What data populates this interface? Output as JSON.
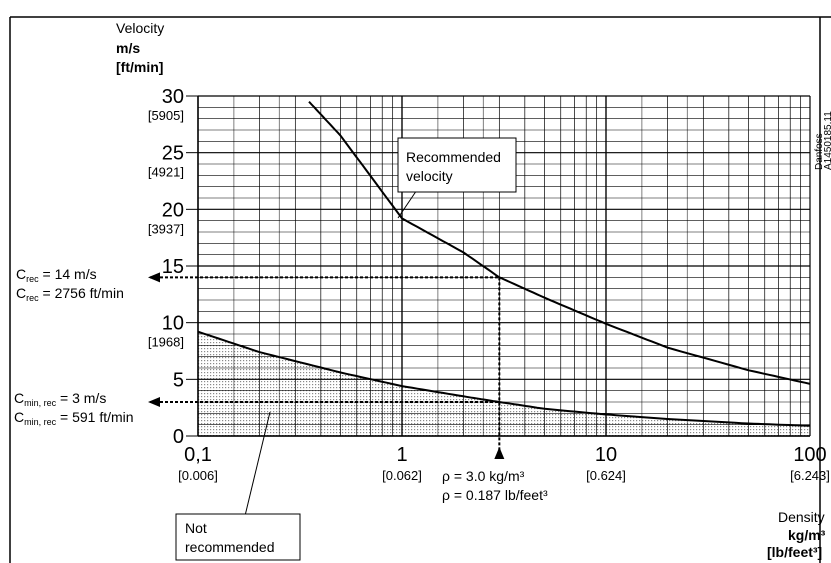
{
  "chart_data": {
    "type": "line",
    "title": "",
    "x_scale": "log",
    "xlim": [
      0.1,
      100
    ],
    "ylim": [
      0,
      30
    ],
    "y_axis": {
      "label": "Velocity",
      "unit": "m/s",
      "unit_alt": "[ft/min]",
      "ticks": [
        {
          "value": 0,
          "label": "0",
          "alt": ""
        },
        {
          "value": 5,
          "label": "5",
          "alt": ""
        },
        {
          "value": 10,
          "label": "10",
          "alt": "[1968]"
        },
        {
          "value": 15,
          "label": "15",
          "alt": ""
        },
        {
          "value": 20,
          "label": "20",
          "alt": "[3937]"
        },
        {
          "value": 25,
          "label": "25",
          "alt": "[4921]"
        },
        {
          "value": 30,
          "label": "30",
          "alt": "[5905]"
        }
      ]
    },
    "x_axis": {
      "label": "Density",
      "unit": "kg/m³",
      "unit_alt": "[lb/feet³]",
      "ticks": [
        {
          "value": 0.1,
          "label": "0,1",
          "alt": "[0.006]"
        },
        {
          "value": 1,
          "label": "1",
          "alt": "[0.062]"
        },
        {
          "value": 10,
          "label": "10",
          "alt": "[0.624]"
        },
        {
          "value": 100,
          "label": "100",
          "alt": "[6.243]"
        }
      ]
    },
    "grid": true,
    "series": [
      {
        "name": "Recommended velocity",
        "x": [
          0.35,
          0.5,
          1,
          2,
          3,
          5,
          10,
          20,
          50,
          100
        ],
        "y": [
          29.5,
          26.5,
          19.2,
          16.2,
          14.0,
          12.2,
          9.9,
          7.8,
          5.8,
          4.6
        ]
      },
      {
        "name": "",
        "x": [
          0.1,
          0.2,
          0.5,
          1,
          2,
          3,
          5,
          10,
          20,
          50,
          100
        ],
        "y": [
          9.2,
          7.4,
          5.6,
          4.4,
          3.5,
          3.0,
          2.4,
          1.9,
          1.5,
          1.1,
          0.9
        ]
      }
    ],
    "shaded_region_label": "Not recommended",
    "reference": {
      "density_x": 3.0,
      "velocity_rec_y": 14,
      "velocity_min_y": 3,
      "density_label_1": "ρ = 3.0 kg/m³",
      "density_label_2": "ρ = 0.187 lb/feet³",
      "c_rec_label_1": "C",
      "c_rec_sub_1": "rec",
      "c_rec_val_1": " = 14 m/s",
      "c_rec_label_2": "C",
      "c_rec_sub_2": "rec",
      "c_rec_val_2": " = 2756 ft/min",
      "c_min_label_1": "C",
      "c_min_sub_1": "min, rec",
      "c_min_val_1": " = 3 m/s",
      "c_min_label_2": "C",
      "c_min_sub_2": "min, rec",
      "c_min_val_2": " = 591 ft/min"
    },
    "annotations": {
      "recommended_1": "Recommended",
      "recommended_2": "velocity",
      "not_recommended_1": "Not",
      "not_recommended_2": "recommended"
    },
    "watermark_1": "Danfoss",
    "watermark_2": "A1450185.11",
    "colors": {
      "line": "#000000",
      "grid": "#000000",
      "shade": "#d9d9d9",
      "frame": "#000000"
    }
  }
}
